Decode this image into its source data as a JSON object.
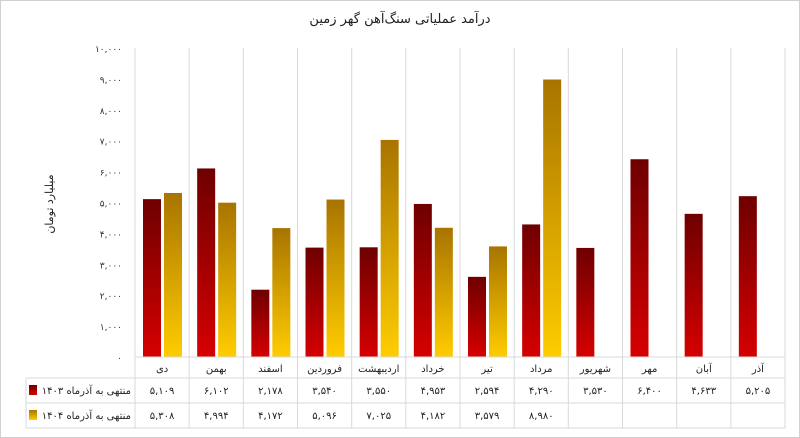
{
  "colors": {
    "series1_top": "#6e0000",
    "series1_bottom": "#d60000",
    "series2_top": "#a87400",
    "series2_bottom": "#ffcc00",
    "grid": "#d9d9d9"
  },
  "chart_data": {
    "type": "bar",
    "title": "درآمد عملیاتی سنگ‌آهن گهر زمین",
    "ylabel": "میلیارد تومان",
    "xlabel": "",
    "ylim": [
      0,
      10000
    ],
    "yticks": [
      0,
      1000,
      2000,
      3000,
      4000,
      5000,
      6000,
      7000,
      8000,
      9000,
      10000
    ],
    "grid": true,
    "legend": "table-left",
    "categories": [
      "دی",
      "بهمن",
      "اسفند",
      "فروردین",
      "اردیبهشت",
      "خرداد",
      "تیر",
      "مرداد",
      "شهریور",
      "مهر",
      "آبان",
      "آذر"
    ],
    "series": [
      {
        "name": "منتهی به آذرماه ۱۴۰۳",
        "values": [
          5109,
          6102,
          2178,
          3540,
          3550,
          4953,
          2594,
          4290,
          3530,
          6400,
          4633,
          5205
        ]
      },
      {
        "name": "منتهی به آذرماه ۱۴۰۴",
        "values": [
          5308,
          4994,
          4172,
          5096,
          7025,
          4182,
          3579,
          8980,
          null,
          null,
          null,
          null
        ]
      }
    ]
  }
}
